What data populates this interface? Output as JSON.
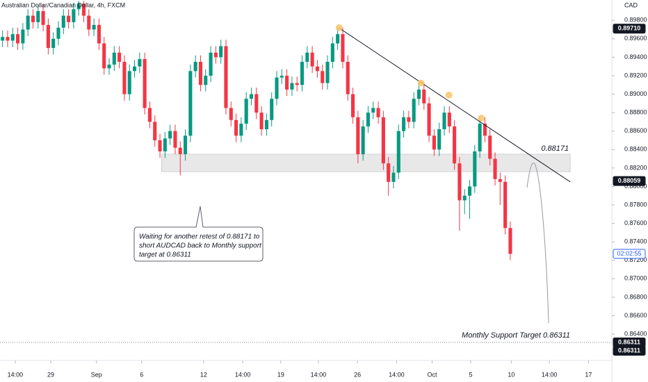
{
  "chart_data": {
    "type": "candlestick",
    "title": "Australian Dollar/Canadian Dollar, 4h, FXCM",
    "currency": "CAD",
    "up_color": "#089981",
    "down_color": "#f23645",
    "xlim": [
      -0.5,
      120
    ],
    "ylim": [
      0.8613,
      0.9002
    ],
    "xticks": [
      {
        "value": 2.5,
        "label": "14:00"
      },
      {
        "value": 9.5,
        "label": "29"
      },
      {
        "value": 18.5,
        "label": "Sep"
      },
      {
        "value": 27.4,
        "label": "6"
      },
      {
        "value": 39.6,
        "label": "12"
      },
      {
        "value": 47.3,
        "label": "14:00"
      },
      {
        "value": 54.8,
        "label": "19"
      },
      {
        "value": 62.2,
        "label": "14:00"
      },
      {
        "value": 69.9,
        "label": "26"
      },
      {
        "value": 77.6,
        "label": "14:00"
      },
      {
        "value": 84.6,
        "label": "Oct"
      },
      {
        "value": 92.2,
        "label": "5"
      },
      {
        "value": 100.2,
        "label": "10"
      },
      {
        "value": 107.7,
        "label": "14:00"
      },
      {
        "value": 115.4,
        "label": "17"
      }
    ],
    "yticks": [
      {
        "value": 0.898,
        "label": "0.89800"
      },
      {
        "value": 0.896,
        "label": "0.89600"
      },
      {
        "value": 0.894,
        "label": "0.89400"
      },
      {
        "value": 0.892,
        "label": "0.89200"
      },
      {
        "value": 0.89,
        "label": "0.89000"
      },
      {
        "value": 0.888,
        "label": "0.88800"
      },
      {
        "value": 0.886,
        "label": "0.88600"
      },
      {
        "value": 0.884,
        "label": "0.88400"
      },
      {
        "value": 0.882,
        "label": "0.88200"
      },
      {
        "value": 0.88,
        "label": "0.88000"
      },
      {
        "value": 0.878,
        "label": "0.87800"
      },
      {
        "value": 0.876,
        "label": "0.87600"
      },
      {
        "value": 0.874,
        "label": "0.87400"
      },
      {
        "value": 0.872,
        "label": "0.87200"
      },
      {
        "value": 0.87,
        "label": "0.87000"
      },
      {
        "value": 0.868,
        "label": "0.86800"
      },
      {
        "value": 0.866,
        "label": "0.86600"
      },
      {
        "value": 0.864,
        "label": "0.86400"
      }
    ],
    "open": [
      0.8958,
      0.8962,
      0.8958,
      0.8965,
      0.8955,
      0.897,
      0.8985,
      0.8978,
      0.899,
      0.8975,
      0.895,
      0.896,
      0.8972,
      0.8985,
      0.8978,
      0.8992,
      0.8998,
      0.8985,
      0.897,
      0.8975,
      0.8955,
      0.8928,
      0.8932,
      0.8945,
      0.8935,
      0.89,
      0.8925,
      0.893,
      0.8938,
      0.8885,
      0.887,
      0.885,
      0.8838,
      0.8852,
      0.886,
      0.8842,
      0.8835,
      0.8855,
      0.8925,
      0.8935,
      0.891,
      0.892,
      0.8945,
      0.894,
      0.8952,
      0.8885,
      0.8872,
      0.8855,
      0.8868,
      0.8895,
      0.89,
      0.888,
      0.8862,
      0.8872,
      0.8895,
      0.8918,
      0.892,
      0.8905,
      0.8912,
      0.891,
      0.8935,
      0.8945,
      0.893,
      0.8925,
      0.8912,
      0.8935,
      0.8955,
      0.8965,
      0.8935,
      0.89,
      0.8875,
      0.8835,
      0.8865,
      0.888,
      0.8885,
      0.8875,
      0.8825,
      0.8805,
      0.8815,
      0.886,
      0.8875,
      0.887,
      0.8895,
      0.8905,
      0.889,
      0.8855,
      0.884,
      0.8862,
      0.888,
      0.8865,
      0.8825,
      0.8785,
      0.879,
      0.88,
      0.8838,
      0.8868,
      0.8855,
      0.883,
      0.8808,
      0.8805,
      0.8755
    ],
    "high": [
      0.8969,
      0.8969,
      0.8972,
      0.8972,
      0.8977,
      0.8992,
      0.8992,
      0.8997,
      0.8997,
      0.8982,
      0.8967,
      0.8979,
      0.8992,
      0.8992,
      0.8999,
      0.9001,
      0.9001,
      0.8992,
      0.8982,
      0.8982,
      0.8962,
      0.8939,
      0.8952,
      0.8952,
      0.8942,
      0.8932,
      0.8937,
      0.8945,
      0.8945,
      0.8892,
      0.8877,
      0.8857,
      0.8859,
      0.8867,
      0.8867,
      0.8849,
      0.8862,
      0.8932,
      0.8942,
      0.8942,
      0.8927,
      0.8952,
      0.8952,
      0.8959,
      0.8959,
      0.8892,
      0.8879,
      0.8875,
      0.8902,
      0.8907,
      0.8907,
      0.8887,
      0.8879,
      0.8902,
      0.8925,
      0.8927,
      0.8927,
      0.8919,
      0.8919,
      0.8942,
      0.8952,
      0.8952,
      0.8937,
      0.8932,
      0.8942,
      0.8962,
      0.8972,
      0.8972,
      0.8942,
      0.8907,
      0.8882,
      0.8872,
      0.8887,
      0.8892,
      0.8892,
      0.8882,
      0.8832,
      0.8822,
      0.8867,
      0.8882,
      0.8882,
      0.8902,
      0.8912,
      0.8912,
      0.8897,
      0.8862,
      0.8869,
      0.8887,
      0.8887,
      0.8872,
      0.8832,
      0.8797,
      0.8807,
      0.8845,
      0.8875,
      0.8875,
      0.8862,
      0.8837,
      0.8815,
      0.8812,
      0.8762
    ],
    "low": [
      0.8951,
      0.8951,
      0.8951,
      0.8948,
      0.8948,
      0.8963,
      0.8971,
      0.8971,
      0.8968,
      0.8943,
      0.8943,
      0.8953,
      0.8965,
      0.8971,
      0.8971,
      0.8985,
      0.8978,
      0.8963,
      0.8963,
      0.8948,
      0.8921,
      0.8921,
      0.8925,
      0.8928,
      0.8893,
      0.8893,
      0.8918,
      0.8923,
      0.8878,
      0.8863,
      0.8843,
      0.8831,
      0.8831,
      0.8845,
      0.8835,
      0.8812,
      0.8828,
      0.8848,
      0.8918,
      0.8903,
      0.8903,
      0.8913,
      0.8933,
      0.8933,
      0.8878,
      0.8865,
      0.8848,
      0.8848,
      0.8861,
      0.8888,
      0.8873,
      0.8855,
      0.8855,
      0.8865,
      0.8888,
      0.8911,
      0.8898,
      0.8898,
      0.8903,
      0.8903,
      0.8928,
      0.8923,
      0.8918,
      0.8905,
      0.8905,
      0.8928,
      0.8948,
      0.8928,
      0.8893,
      0.8868,
      0.8825,
      0.8828,
      0.8858,
      0.8873,
      0.8868,
      0.8818,
      0.879,
      0.8798,
      0.8808,
      0.8853,
      0.8863,
      0.8863,
      0.8888,
      0.8883,
      0.8848,
      0.8833,
      0.8833,
      0.8855,
      0.8858,
      0.8818,
      0.8752,
      0.877,
      0.8765,
      0.8793,
      0.8831,
      0.8848,
      0.8823,
      0.8801,
      0.878,
      0.8748,
      0.872
    ],
    "close": [
      0.8962,
      0.8958,
      0.8965,
      0.8955,
      0.897,
      0.8985,
      0.8978,
      0.899,
      0.8975,
      0.895,
      0.896,
      0.8972,
      0.8985,
      0.8978,
      0.8992,
      0.8998,
      0.8985,
      0.897,
      0.8975,
      0.8955,
      0.8928,
      0.8932,
      0.8945,
      0.8935,
      0.89,
      0.8925,
      0.893,
      0.8938,
      0.8885,
      0.887,
      0.885,
      0.8838,
      0.8852,
      0.886,
      0.8842,
      0.8835,
      0.8855,
      0.8925,
      0.8935,
      0.891,
      0.892,
      0.8945,
      0.894,
      0.8952,
      0.8885,
      0.8872,
      0.8855,
      0.8868,
      0.8895,
      0.89,
      0.888,
      0.8862,
      0.8872,
      0.8895,
      0.8918,
      0.892,
      0.8905,
      0.8912,
      0.891,
      0.8935,
      0.8945,
      0.893,
      0.8925,
      0.8912,
      0.8935,
      0.8955,
      0.8965,
      0.8935,
      0.89,
      0.8875,
      0.8835,
      0.8865,
      0.888,
      0.8885,
      0.8875,
      0.8825,
      0.8805,
      0.8815,
      0.886,
      0.8875,
      0.887,
      0.8895,
      0.8905,
      0.889,
      0.8855,
      0.884,
      0.8862,
      0.888,
      0.8865,
      0.8825,
      0.8785,
      0.879,
      0.88,
      0.8838,
      0.8868,
      0.8855,
      0.883,
      0.8808,
      0.8805,
      0.8755,
      0.8727
    ],
    "price_labels": [
      {
        "value": 0.8971,
        "label": "0.89710"
      },
      {
        "value": 0.88059,
        "label": "0.88059"
      },
      {
        "value": 0.86311,
        "label": "0.86311"
      }
    ],
    "countdown": "02:02:55",
    "trendline": {
      "x": [
        66.2,
        111.8
      ],
      "y": [
        0.8972,
        0.8805
      ]
    },
    "touches": {
      "x": [
        66.3,
        82.4,
        87.9,
        94.3
      ],
      "y": [
        0.8972,
        0.8912,
        0.8899,
        0.8874
      ],
      "color": "#f7c46c"
    },
    "zone": {
      "x": [
        31.3,
        111.8
      ],
      "y": [
        0.8835,
        0.8816
      ],
      "label": "0.88171"
    },
    "support": {
      "value": 0.86311,
      "label": "Monthly Support Target 0.86311"
    },
    "callout": [
      "Waiting for another retest of 0.88171 to",
      "short AUDCAD back to Monthly support",
      "target at 0.86311"
    ]
  }
}
